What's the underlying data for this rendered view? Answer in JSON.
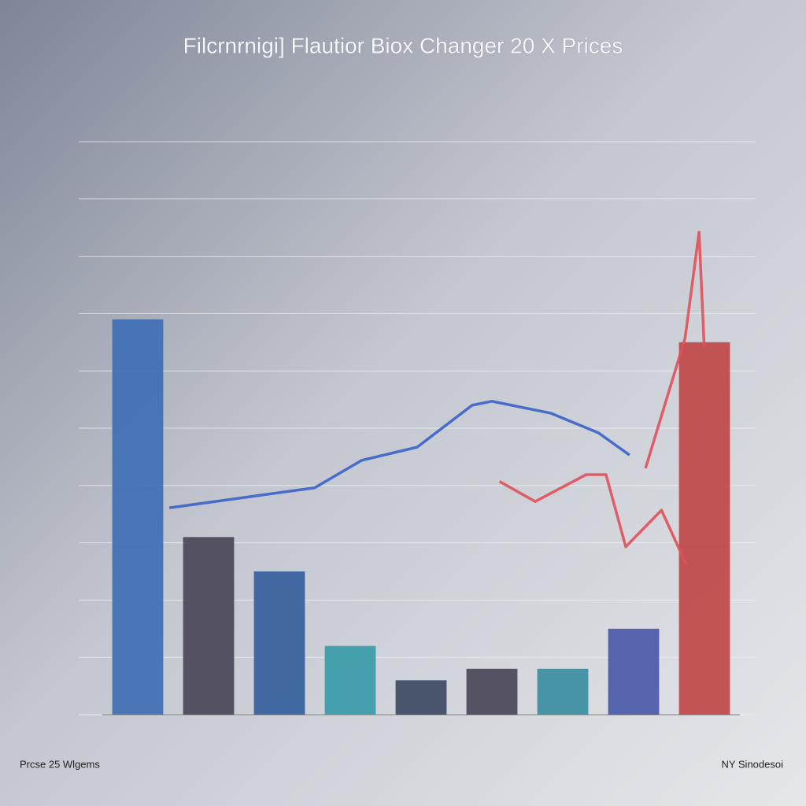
{
  "chart_data": {
    "type": "bar",
    "title": "Filcrnrnigi] Flautior Biox Changer 20 X Prices",
    "categories": [
      null,
      null,
      null,
      null,
      null,
      null,
      null,
      null,
      null
    ],
    "values": [
      69,
      31,
      25,
      12,
      6,
      8,
      8,
      15,
      65
    ],
    "colors": [
      "#3f6fb5",
      "#4a4658",
      "#355f9c",
      "#3a9aa8",
      "#3c4a63",
      "#4a4658",
      "#3a8ea0",
      "#4a5aa8",
      "#c04848"
    ],
    "ylim": [
      0,
      100
    ],
    "yticks": [
      0,
      10,
      20,
      30,
      40,
      50,
      60,
      70,
      80,
      90,
      100
    ],
    "grid": true,
    "xlim": [
      0,
      100
    ],
    "lines": [
      {
        "color": "#3a62c8",
        "x": [
          10.5,
          33.3,
          40.7,
          49.4,
          58,
          61.1,
          70.4,
          77.8,
          82.7
        ],
        "values": [
          36.1,
          39.6,
          44.4,
          46.7,
          54,
          54.7,
          52.6,
          49.2,
          45.3
        ]
      },
      {
        "color": "#e0505a",
        "x": [
          62.3,
          67.9,
          75.9,
          79,
          82.1,
          87.7,
          91.6,
          null,
          85.2,
          91.4,
          93.6,
          94.4
        ],
        "values": [
          40.7,
          37.2,
          41.9,
          41.9,
          29.3,
          35.7,
          26.2,
          null,
          43,
          65.7,
          84.2,
          64.3
        ]
      }
    ],
    "footer_left": "Prcse 25 Wlgems",
    "footer_right": "NY Sinodesoi"
  }
}
